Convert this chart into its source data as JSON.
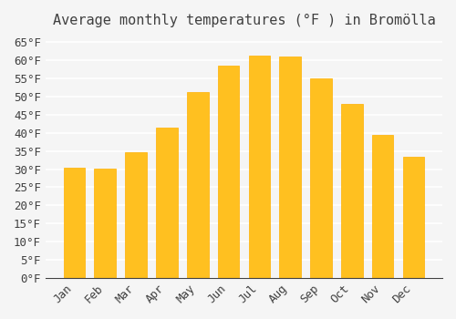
{
  "title": "Average monthly temperatures (°F ) in Bromölla",
  "months": [
    "Jan",
    "Feb",
    "Mar",
    "Apr",
    "May",
    "Jun",
    "Jul",
    "Aug",
    "Sep",
    "Oct",
    "Nov",
    "Dec"
  ],
  "values": [
    30.5,
    30.2,
    34.7,
    41.5,
    51.3,
    58.5,
    61.2,
    61.0,
    54.9,
    48.0,
    39.5,
    33.3
  ],
  "bar_color": "#FFC020",
  "bar_edge_color": "#FFB000",
  "background_color": "#F5F5F5",
  "grid_color": "#FFFFFF",
  "text_color": "#404040",
  "ylim": [
    0,
    67
  ],
  "yticks": [
    0,
    5,
    10,
    15,
    20,
    25,
    30,
    35,
    40,
    45,
    50,
    55,
    60,
    65
  ],
  "ylabel_suffix": "°F",
  "title_fontsize": 11,
  "tick_fontsize": 9,
  "font_family": "monospace"
}
